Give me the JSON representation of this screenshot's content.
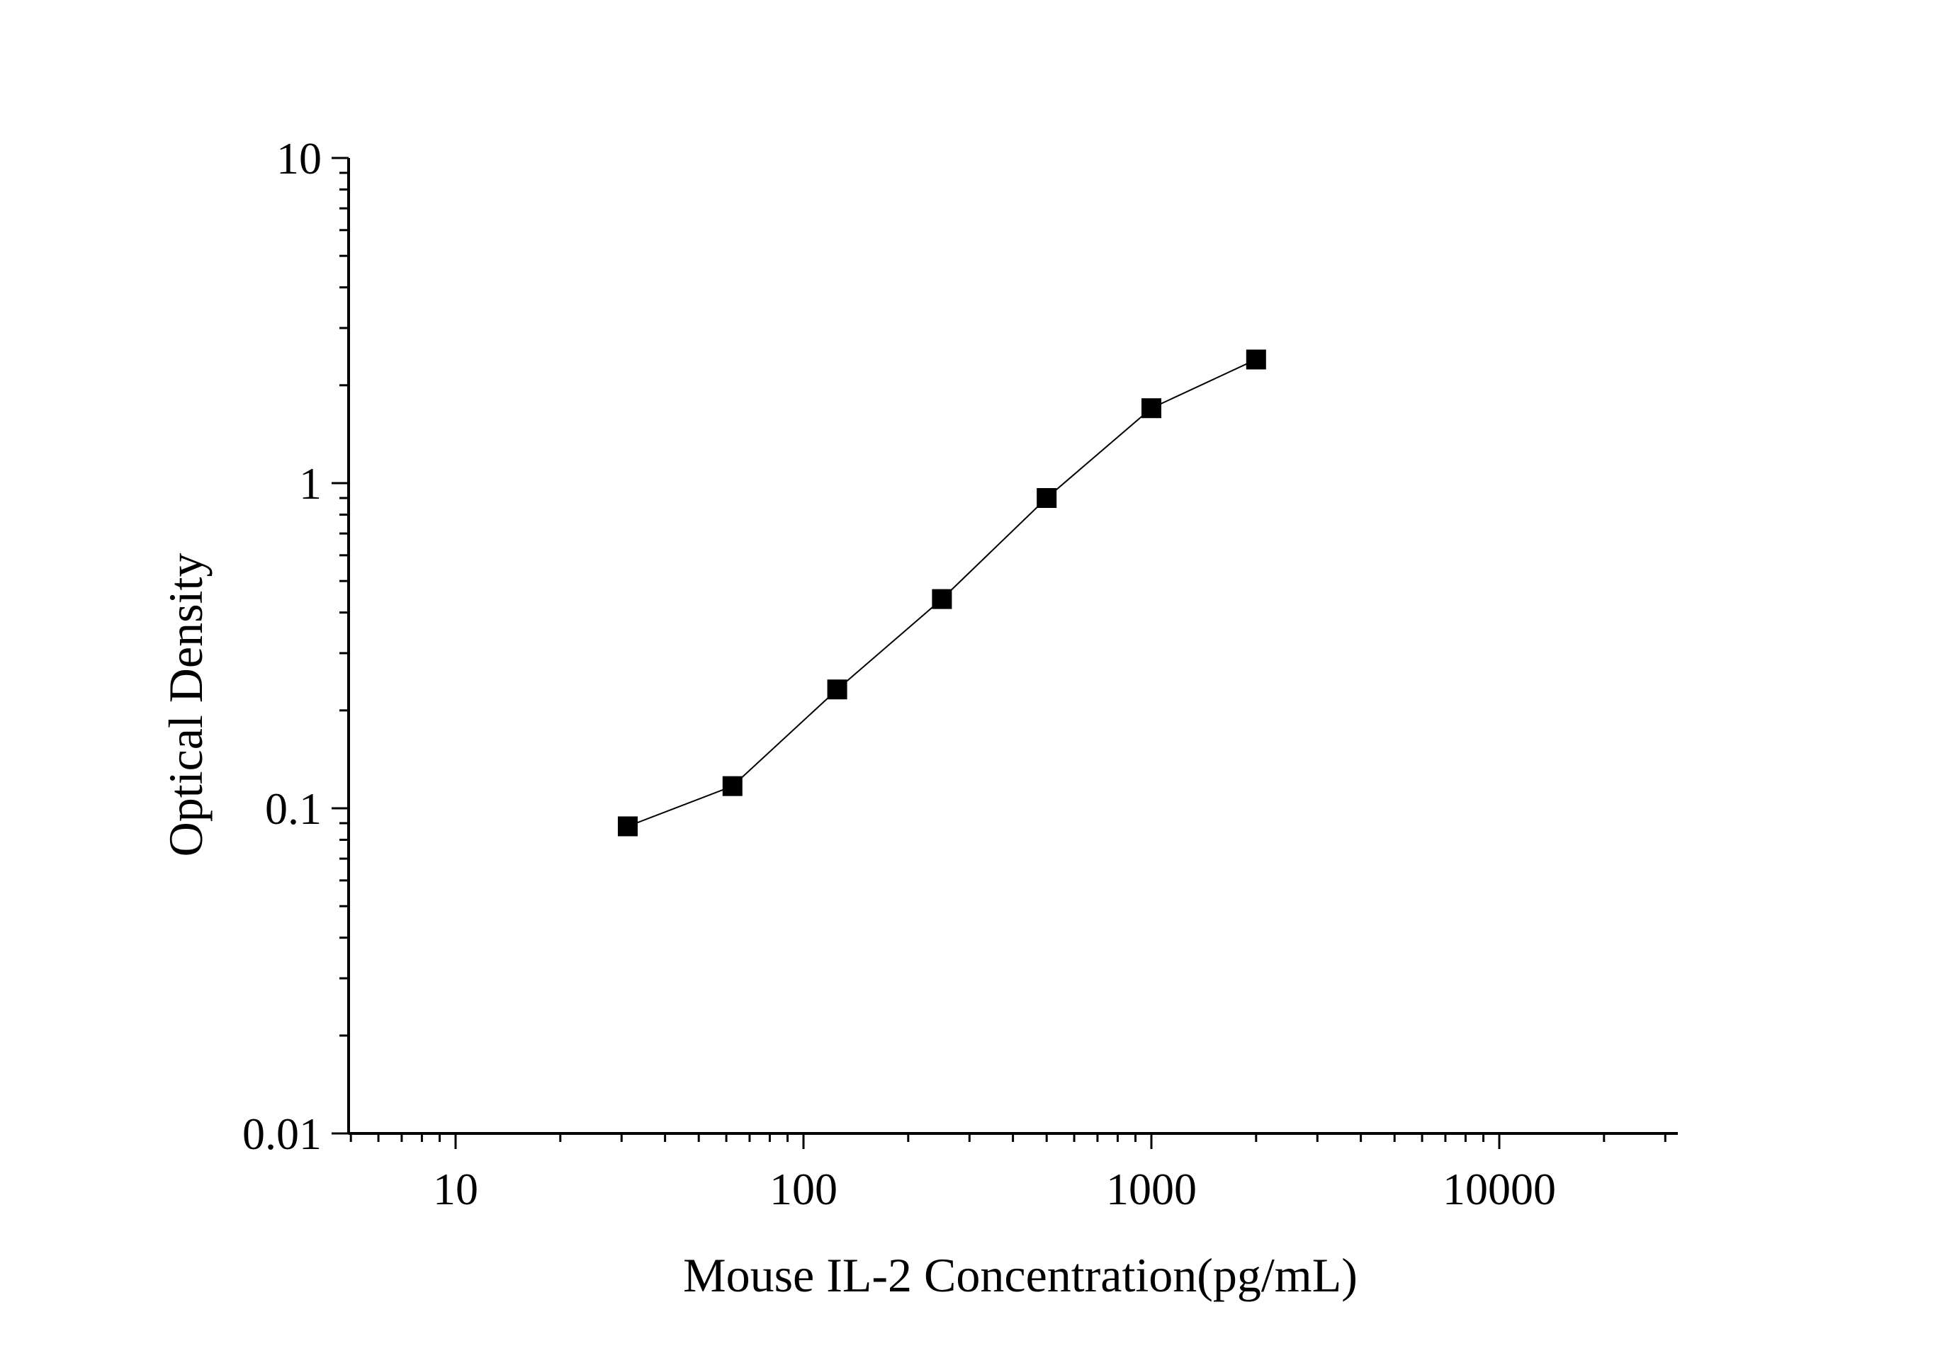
{
  "chart_data": {
    "type": "line",
    "title": "",
    "xlabel": "Mouse IL-2 Concentration(pg/mL)",
    "ylabel": "Optical Density",
    "x_scale": "log",
    "y_scale": "log",
    "xlim": [
      5,
      30000
    ],
    "ylim": [
      0.01,
      10
    ],
    "x_ticks": [
      {
        "value": 10,
        "label": "10"
      },
      {
        "value": 100,
        "label": "100"
      },
      {
        "value": 1000,
        "label": "1000"
      },
      {
        "value": 10000,
        "label": "10000"
      }
    ],
    "y_ticks": [
      {
        "value": 0.01,
        "label": "0.01"
      },
      {
        "value": 0.1,
        "label": "0.1"
      },
      {
        "value": 1,
        "label": "1"
      },
      {
        "value": 10,
        "label": "10"
      }
    ],
    "grid": false,
    "legend": "none",
    "marker": "square",
    "colors": {
      "series": "#000000",
      "axis": "#000000",
      "background": "#ffffff"
    },
    "series": [
      {
        "x": [
          31.25,
          62.5,
          125,
          250,
          500,
          1000,
          2000
        ],
        "y": [
          0.088,
          0.117,
          0.232,
          0.44,
          0.9,
          1.7,
          2.4
        ]
      }
    ]
  }
}
